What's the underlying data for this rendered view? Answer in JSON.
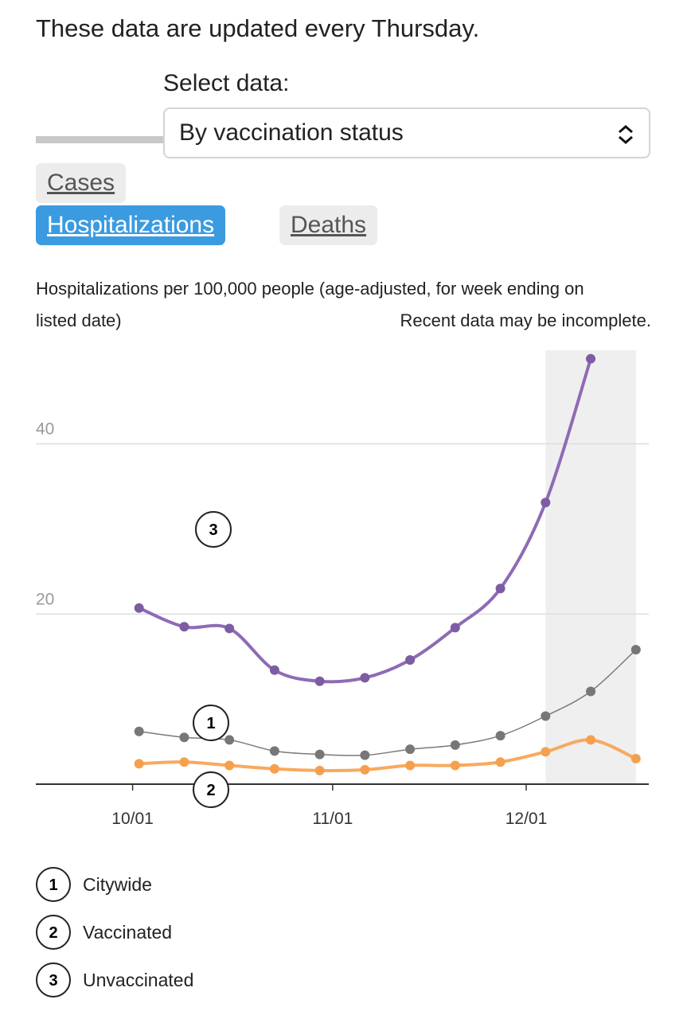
{
  "header": {
    "notice": "These data are updated every Thursday."
  },
  "controls": {
    "select_label": "Select data:",
    "select_value": "By vaccination status",
    "tabs": [
      "Cases",
      "Hospitalizations",
      "Deaths"
    ],
    "active_tab": 1
  },
  "chart_data": {
    "type": "line",
    "subtitle": "Hospitalizations per 100,000 people (age-adjusted, for week ending on listed date)",
    "note": "Recent data may be incomplete.",
    "x": [
      "10/02",
      "10/09",
      "10/16",
      "10/23",
      "10/30",
      "11/06",
      "11/13",
      "11/20",
      "11/27",
      "12/04",
      "12/11",
      "12/18"
    ],
    "xlim": [
      "09/16",
      "12/20"
    ],
    "xticks": [
      "10/01",
      "11/01",
      "12/01"
    ],
    "ylim": [
      0,
      51
    ],
    "yticks": [
      20,
      40
    ],
    "grid": true,
    "highlight": [
      "12/04",
      "12/18"
    ],
    "series": [
      {
        "name": "Citywide",
        "marker": "1",
        "color": "#7a7a7a",
        "values": [
          6.2,
          5.5,
          5.2,
          3.9,
          3.5,
          3.4,
          4.1,
          4.6,
          5.7,
          8.0,
          10.9,
          15.8
        ]
      },
      {
        "name": "Vaccinated",
        "marker": "2",
        "color": "#f8a95e",
        "values": [
          2.4,
          2.6,
          2.2,
          1.8,
          1.6,
          1.7,
          2.2,
          2.2,
          2.6,
          3.8,
          5.2,
          3.0
        ]
      },
      {
        "name": "Unvaccinated",
        "marker": "3",
        "color": "#8e6bb5",
        "values": [
          20.7,
          18.5,
          18.3,
          13.4,
          12.1,
          12.5,
          14.6,
          18.4,
          23.0,
          33.1,
          50.0,
          null
        ]
      }
    ]
  }
}
